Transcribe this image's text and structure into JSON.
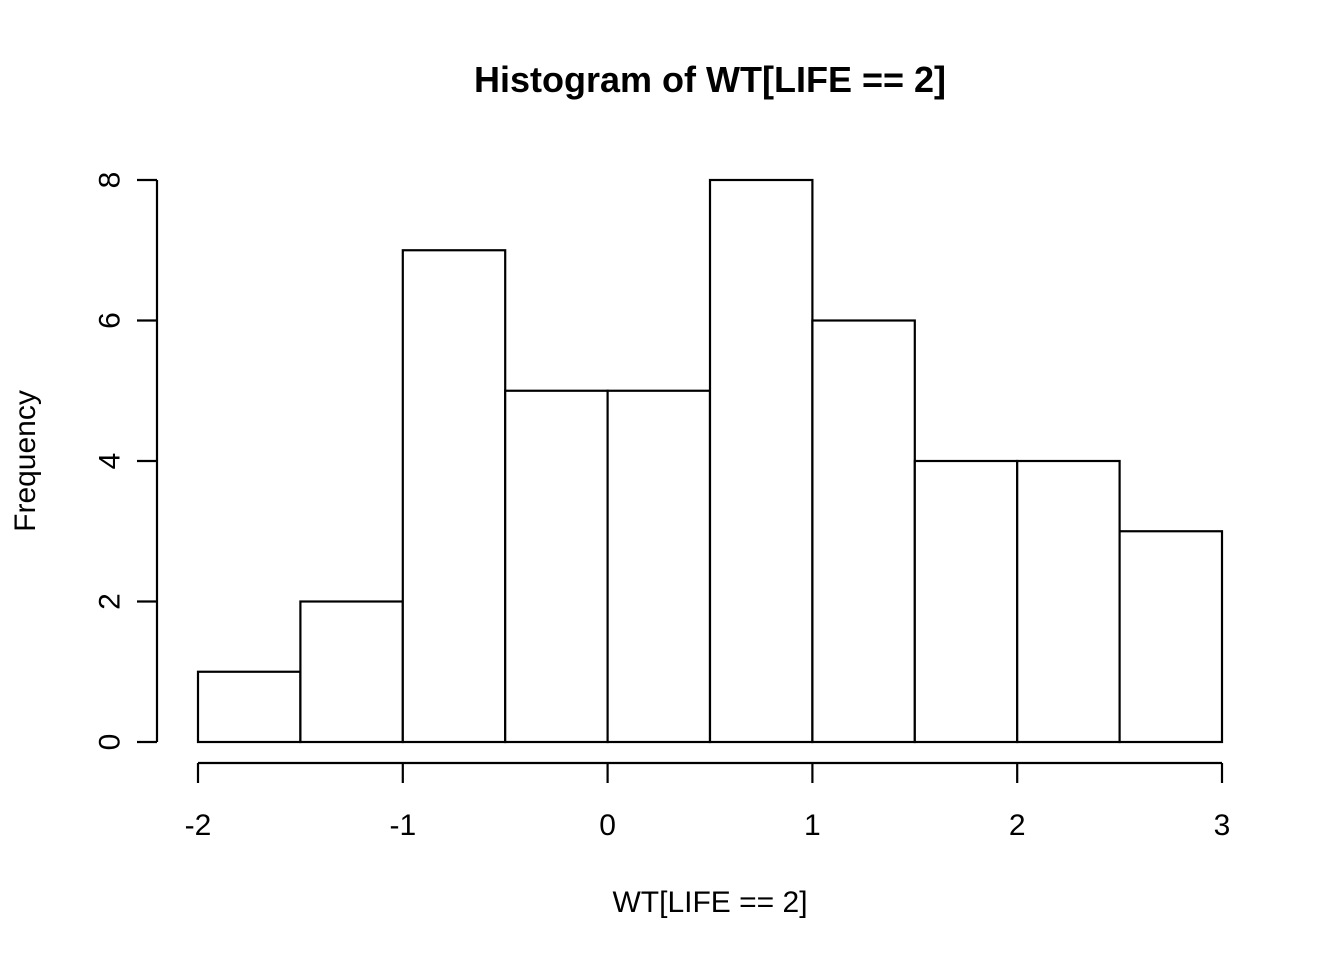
{
  "chart_data": {
    "type": "bar",
    "title": "Histogram of WT[LIFE == 2]",
    "xlabel": "WT[LIFE == 2]",
    "ylabel": "Frequency",
    "bin_edges": [
      -2,
      -1.5,
      -1,
      -0.5,
      0,
      0.5,
      1,
      1.5,
      2,
      2.5,
      3
    ],
    "values": [
      1,
      2,
      7,
      5,
      5,
      8,
      6,
      4,
      4,
      3
    ],
    "xlim": [
      -2,
      3
    ],
    "ylim": [
      0,
      8
    ],
    "x_ticks": [
      -2,
      -1,
      0,
      1,
      2,
      3
    ],
    "y_ticks": [
      0,
      2,
      4,
      6,
      8
    ],
    "grid": false,
    "legend": "none",
    "bar_fill": "#ffffff",
    "bar_stroke": "#000000"
  }
}
